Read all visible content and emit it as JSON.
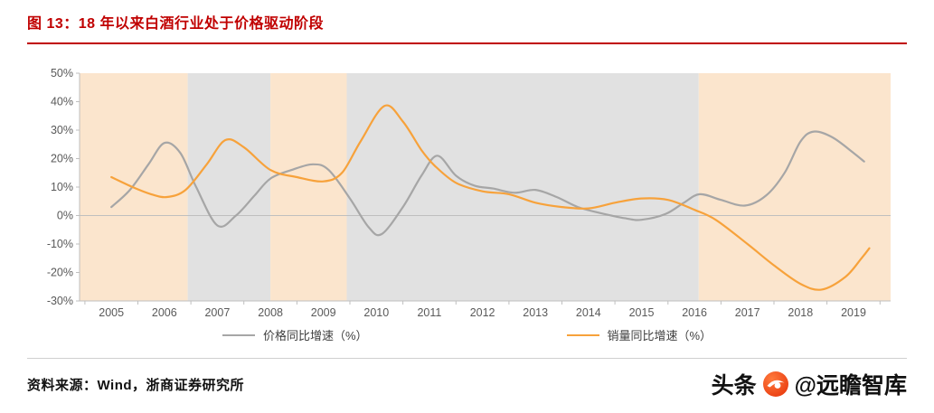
{
  "title": "图 13：18 年以来白酒行业处于价格驱动阶段",
  "footer": {
    "source": "资料来源：Wind，浙商证券研究所"
  },
  "watermark": {
    "brand": "头条",
    "handle": "@远瞻智库",
    "logo": "yuanzhan-zhiku-logo"
  },
  "colors": {
    "title_red": "#c00000",
    "price_line_gray": "#a6a6a6",
    "volume_line_orange": "#f7a23b",
    "band_peach": "#fbe5cd",
    "band_gray": "#e1e1e1",
    "axis": "#bfbfbf",
    "axis_text": "#595959",
    "logo_red": "#e8380d"
  },
  "chart_data": {
    "type": "line",
    "title": "",
    "xlabel": "",
    "ylabel": "",
    "x_range": [
      2004.4,
      2019.7
    ],
    "y_range": [
      -30,
      50
    ],
    "y_ticks": [
      50,
      40,
      30,
      20,
      10,
      0,
      -10,
      -20,
      -30
    ],
    "y_tick_suffix": "%",
    "x_ticks": [
      2005,
      2006,
      2007,
      2008,
      2009,
      2010,
      2011,
      2012,
      2013,
      2014,
      2015,
      2016,
      2017,
      2018,
      2019
    ],
    "grid": false,
    "legend_position": "bottom-center",
    "bands": [
      {
        "from": 2004.4,
        "to": 2006.44,
        "color": "#fbe5cd",
        "label": "price-driven-phase"
      },
      {
        "from": 2006.44,
        "to": 2008.0,
        "color": "#e1e1e1",
        "label": "volume-driven-phase"
      },
      {
        "from": 2008.0,
        "to": 2009.44,
        "color": "#fbe5cd",
        "label": "price-driven-phase"
      },
      {
        "from": 2009.44,
        "to": 2016.08,
        "color": "#e1e1e1",
        "label": "volume-driven-phase"
      },
      {
        "from": 2016.08,
        "to": 2019.7,
        "color": "#fbe5cd",
        "label": "price-driven-phase"
      }
    ],
    "series": [
      {
        "name": "价格同比增速（%）",
        "color": "#a6a6a6",
        "points": [
          [
            2005.0,
            3
          ],
          [
            2005.35,
            9
          ],
          [
            2005.7,
            18
          ],
          [
            2006.0,
            25.5
          ],
          [
            2006.3,
            22
          ],
          [
            2006.6,
            10
          ],
          [
            2007.0,
            -3.5
          ],
          [
            2007.35,
            0
          ],
          [
            2007.7,
            7
          ],
          [
            2008.0,
            13
          ],
          [
            2008.4,
            16
          ],
          [
            2008.8,
            18
          ],
          [
            2009.1,
            16
          ],
          [
            2009.5,
            6
          ],
          [
            2009.85,
            -4
          ],
          [
            2010.1,
            -6.5
          ],
          [
            2010.5,
            3
          ],
          [
            2010.85,
            14
          ],
          [
            2011.15,
            21
          ],
          [
            2011.5,
            14
          ],
          [
            2011.85,
            10.5
          ],
          [
            2012.2,
            9.5
          ],
          [
            2012.6,
            8
          ],
          [
            2013.0,
            9
          ],
          [
            2013.4,
            6.5
          ],
          [
            2013.8,
            3
          ],
          [
            2014.2,
            1
          ],
          [
            2014.7,
            -1
          ],
          [
            2015.0,
            -1.5
          ],
          [
            2015.45,
            0.5
          ],
          [
            2015.8,
            4.5
          ],
          [
            2016.1,
            7.5
          ],
          [
            2016.5,
            5.5
          ],
          [
            2016.95,
            3.5
          ],
          [
            2017.35,
            7
          ],
          [
            2017.7,
            15
          ],
          [
            2018.0,
            26
          ],
          [
            2018.25,
            29.5
          ],
          [
            2018.6,
            27.5
          ],
          [
            2019.0,
            22
          ],
          [
            2019.2,
            19
          ]
        ]
      },
      {
        "name": "销量同比增速（%）",
        "color": "#f7a23b",
        "points": [
          [
            2005.0,
            13.5
          ],
          [
            2005.4,
            10
          ],
          [
            2005.75,
            7.5
          ],
          [
            2006.05,
            6.5
          ],
          [
            2006.4,
            9
          ],
          [
            2006.8,
            18
          ],
          [
            2007.15,
            26.5
          ],
          [
            2007.5,
            24
          ],
          [
            2008.0,
            16
          ],
          [
            2008.5,
            13.5
          ],
          [
            2009.0,
            12
          ],
          [
            2009.35,
            15
          ],
          [
            2009.7,
            26
          ],
          [
            2010.15,
            38.5
          ],
          [
            2010.5,
            33
          ],
          [
            2010.85,
            23
          ],
          [
            2011.1,
            17.5
          ],
          [
            2011.5,
            11.5
          ],
          [
            2012.0,
            8.5
          ],
          [
            2012.5,
            7.5
          ],
          [
            2013.0,
            4.5
          ],
          [
            2013.5,
            3
          ],
          [
            2014.0,
            2.5
          ],
          [
            2014.5,
            4.5
          ],
          [
            2015.0,
            6
          ],
          [
            2015.5,
            5.5
          ],
          [
            2016.0,
            2
          ],
          [
            2016.4,
            -1.5
          ],
          [
            2017.0,
            -10
          ],
          [
            2017.5,
            -17.5
          ],
          [
            2018.0,
            -24
          ],
          [
            2018.4,
            -26
          ],
          [
            2018.85,
            -21.5
          ],
          [
            2019.15,
            -15
          ],
          [
            2019.3,
            -11.5
          ]
        ]
      }
    ]
  }
}
